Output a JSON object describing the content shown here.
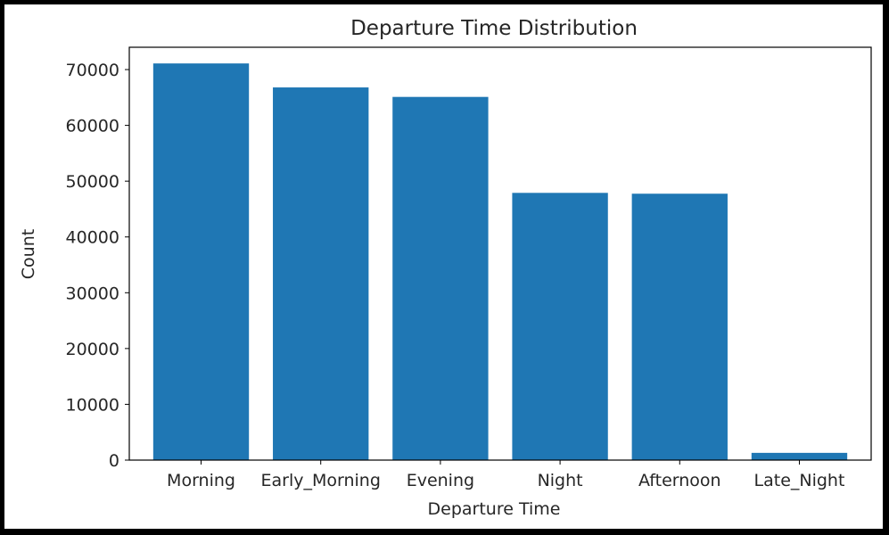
{
  "chart_data": {
    "type": "bar",
    "title": "Departure Time Distribution",
    "xlabel": "Departure Time",
    "ylabel": "Count",
    "categories": [
      "Morning",
      "Early_Morning",
      "Evening",
      "Night",
      "Afternoon",
      "Late_Night"
    ],
    "values": [
      71100,
      66800,
      65100,
      47900,
      47750,
      1300
    ],
    "ylim": [
      0,
      74000
    ],
    "yticks": [
      0,
      10000,
      20000,
      30000,
      40000,
      50000,
      60000,
      70000
    ],
    "ytick_labels": [
      "0",
      "10000",
      "20000",
      "30000",
      "40000",
      "50000",
      "60000",
      "70000"
    ],
    "bar_color": "#1f77b4",
    "grid": false
  }
}
